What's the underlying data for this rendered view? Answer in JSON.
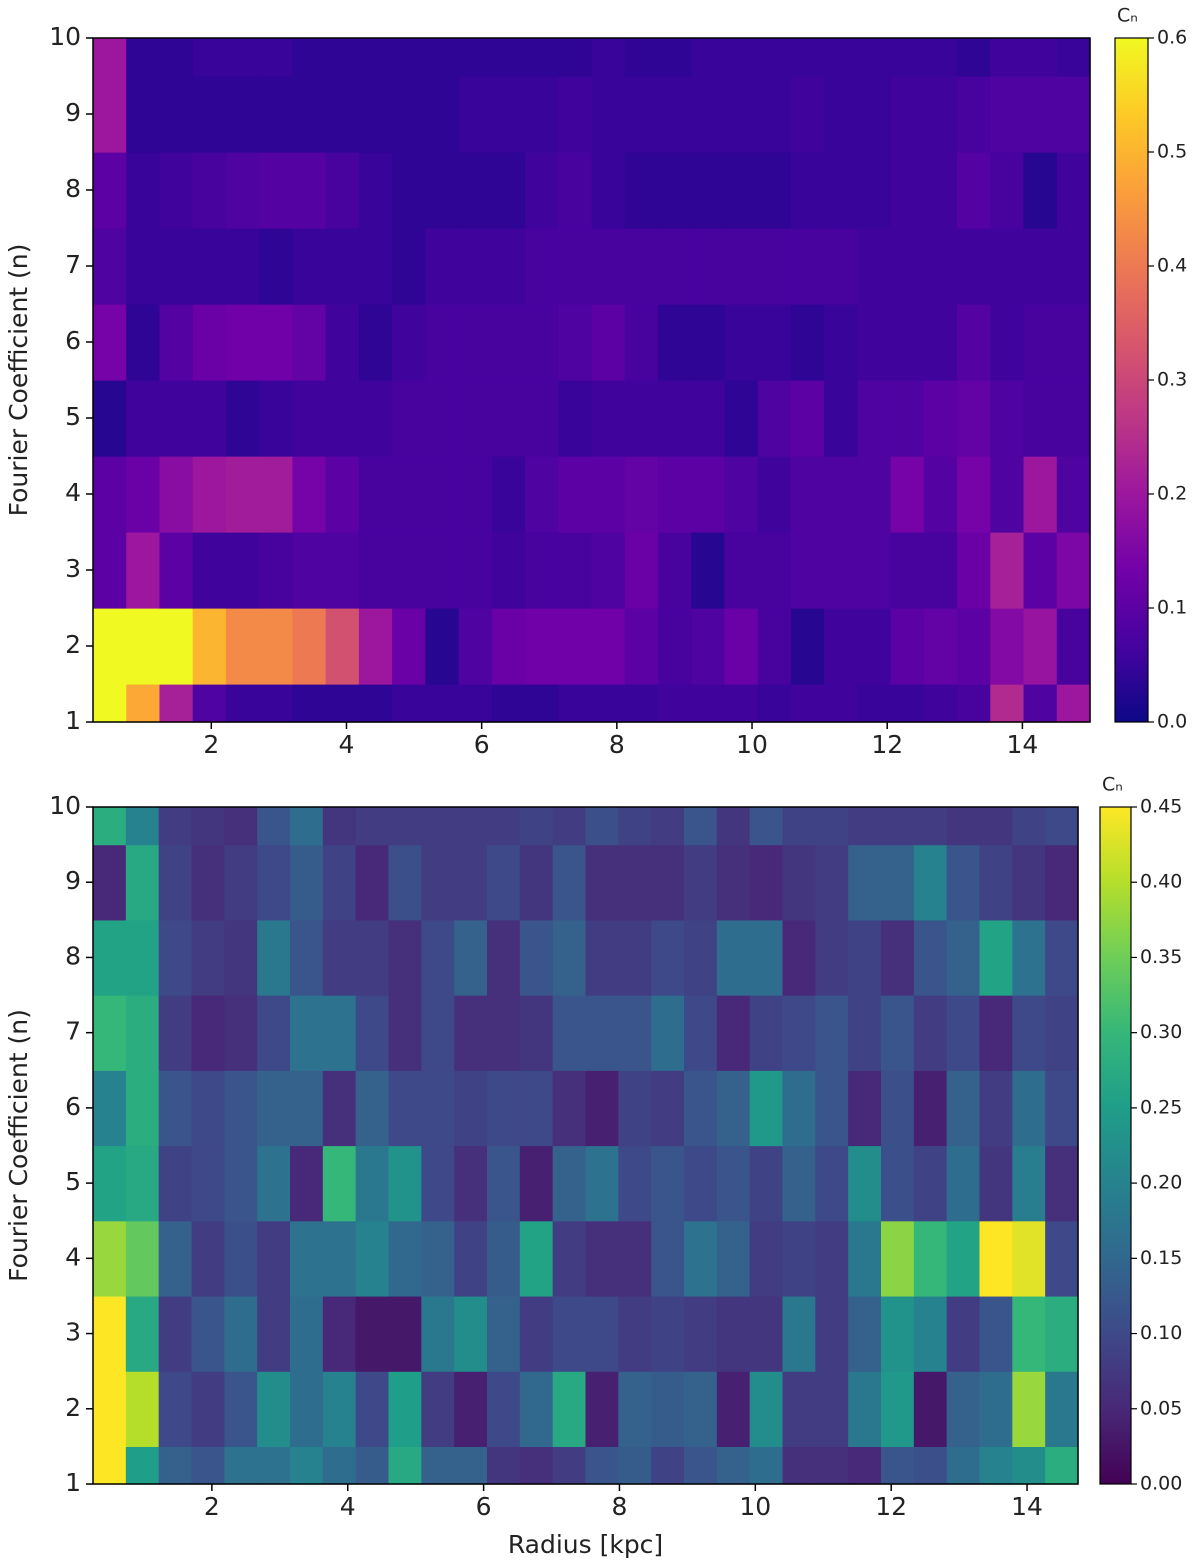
{
  "chart_data": [
    {
      "type": "heatmap",
      "y_label": "Fourier Coefficient (n)",
      "xlim": [
        0.25,
        15
      ],
      "ylim": [
        1,
        10
      ],
      "xticks": [
        2,
        4,
        6,
        8,
        10,
        12,
        14
      ],
      "yticks": [
        1,
        2,
        3,
        4,
        5,
        6,
        7,
        8,
        9,
        10
      ],
      "y": [
        1,
        2,
        3,
        4,
        5,
        6,
        7,
        8,
        9,
        10
      ],
      "values": [
        [
          0.6,
          0.48,
          0.22,
          0.08,
          0.05,
          0.05,
          0.04,
          0.04,
          0.04,
          0.05,
          0.05,
          0.05,
          0.04,
          0.04,
          0.05,
          0.05,
          0.05,
          0.06,
          0.06,
          0.06,
          0.05,
          0.06,
          0.06,
          0.05,
          0.05,
          0.06,
          0.07,
          0.24,
          0.08,
          0.2
        ],
        [
          0.6,
          0.6,
          0.6,
          0.5,
          0.43,
          0.43,
          0.4,
          0.32,
          0.2,
          0.12,
          0.03,
          0.08,
          0.12,
          0.13,
          0.13,
          0.13,
          0.1,
          0.07,
          0.08,
          0.12,
          0.07,
          0.03,
          0.06,
          0.06,
          0.1,
          0.11,
          0.1,
          0.16,
          0.19,
          0.07
        ],
        [
          0.1,
          0.2,
          0.1,
          0.06,
          0.06,
          0.07,
          0.08,
          0.08,
          0.07,
          0.07,
          0.07,
          0.07,
          0.06,
          0.07,
          0.07,
          0.08,
          0.12,
          0.07,
          0.03,
          0.07,
          0.07,
          0.08,
          0.08,
          0.08,
          0.07,
          0.07,
          0.12,
          0.22,
          0.1,
          0.15
        ],
        [
          0.1,
          0.12,
          0.17,
          0.2,
          0.21,
          0.21,
          0.14,
          0.1,
          0.07,
          0.07,
          0.07,
          0.07,
          0.05,
          0.08,
          0.1,
          0.1,
          0.11,
          0.1,
          0.1,
          0.08,
          0.06,
          0.08,
          0.08,
          0.08,
          0.14,
          0.09,
          0.14,
          0.08,
          0.2,
          0.08
        ],
        [
          0.03,
          0.06,
          0.06,
          0.06,
          0.04,
          0.05,
          0.06,
          0.06,
          0.06,
          0.07,
          0.07,
          0.07,
          0.07,
          0.07,
          0.05,
          0.06,
          0.06,
          0.06,
          0.06,
          0.04,
          0.08,
          0.1,
          0.05,
          0.08,
          0.08,
          0.1,
          0.11,
          0.08,
          0.07,
          0.07
        ],
        [
          0.14,
          0.04,
          0.09,
          0.12,
          0.13,
          0.13,
          0.11,
          0.06,
          0.04,
          0.06,
          0.07,
          0.07,
          0.07,
          0.07,
          0.08,
          0.1,
          0.07,
          0.04,
          0.04,
          0.05,
          0.05,
          0.04,
          0.05,
          0.06,
          0.06,
          0.06,
          0.09,
          0.06,
          0.07,
          0.07
        ],
        [
          0.08,
          0.05,
          0.05,
          0.05,
          0.05,
          0.04,
          0.05,
          0.05,
          0.05,
          0.04,
          0.06,
          0.06,
          0.06,
          0.07,
          0.07,
          0.07,
          0.07,
          0.07,
          0.07,
          0.07,
          0.07,
          0.07,
          0.07,
          0.06,
          0.06,
          0.06,
          0.06,
          0.06,
          0.06,
          0.06
        ],
        [
          0.1,
          0.05,
          0.06,
          0.07,
          0.08,
          0.09,
          0.09,
          0.07,
          0.05,
          0.04,
          0.04,
          0.04,
          0.04,
          0.06,
          0.07,
          0.05,
          0.04,
          0.04,
          0.04,
          0.04,
          0.04,
          0.05,
          0.05,
          0.05,
          0.06,
          0.06,
          0.09,
          0.07,
          0.03,
          0.06
        ],
        [
          0.2,
          0.04,
          0.04,
          0.04,
          0.04,
          0.04,
          0.04,
          0.04,
          0.04,
          0.04,
          0.04,
          0.05,
          0.05,
          0.05,
          0.06,
          0.05,
          0.05,
          0.05,
          0.05,
          0.05,
          0.05,
          0.06,
          0.05,
          0.05,
          0.06,
          0.06,
          0.07,
          0.08,
          0.08,
          0.08
        ],
        [
          0.2,
          0.04,
          0.04,
          0.05,
          0.05,
          0.05,
          0.04,
          0.04,
          0.04,
          0.04,
          0.04,
          0.04,
          0.04,
          0.04,
          0.04,
          0.05,
          0.04,
          0.04,
          0.05,
          0.05,
          0.05,
          0.05,
          0.05,
          0.05,
          0.05,
          0.05,
          0.04,
          0.06,
          0.06,
          0.05
        ]
      ],
      "colorbar": {
        "title": "Cₙ",
        "lim": [
          0,
          0.6
        ],
        "ticks": [
          {
            "value": 0,
            "label": "0.0"
          },
          0.1,
          0.2,
          0.3,
          0.4,
          0.5,
          0.6
        ],
        "colormap": [
          "#0d0887",
          "#46039f",
          "#7201a8",
          "#9c179e",
          "#bd3786",
          "#d8576b",
          "#ed7953",
          "#fb9f3a",
          "#fdca26",
          "#f0f921"
        ]
      }
    },
    {
      "type": "heatmap",
      "y_label": "Fourier Coefficient (n)",
      "x_label": "Radius [kpc]",
      "xlim": [
        0.25,
        14.75
      ],
      "ylim": [
        1,
        10
      ],
      "xticks": [
        2,
        4,
        6,
        8,
        10,
        12,
        14
      ],
      "yticks": [
        1,
        2,
        3,
        4,
        5,
        6,
        7,
        8,
        9,
        10
      ],
      "y": [
        1,
        2,
        3,
        4,
        5,
        6,
        7,
        8,
        9,
        10
      ],
      "values": [
        [
          0.45,
          0.25,
          0.14,
          0.12,
          0.17,
          0.17,
          0.2,
          0.16,
          0.13,
          0.27,
          0.14,
          0.14,
          0.07,
          0.06,
          0.08,
          0.12,
          0.13,
          0.09,
          0.12,
          0.14,
          0.16,
          0.06,
          0.06,
          0.05,
          0.12,
          0.11,
          0.16,
          0.2,
          0.22,
          0.28
        ],
        [
          0.45,
          0.4,
          0.1,
          0.08,
          0.12,
          0.22,
          0.16,
          0.2,
          0.1,
          0.25,
          0.08,
          0.04,
          0.1,
          0.15,
          0.27,
          0.04,
          0.14,
          0.13,
          0.14,
          0.04,
          0.22,
          0.08,
          0.08,
          0.18,
          0.24,
          0.03,
          0.14,
          0.16,
          0.38,
          0.18
        ],
        [
          0.45,
          0.27,
          0.08,
          0.12,
          0.16,
          0.08,
          0.16,
          0.05,
          0.03,
          0.03,
          0.18,
          0.22,
          0.14,
          0.08,
          0.1,
          0.1,
          0.08,
          0.09,
          0.08,
          0.07,
          0.07,
          0.18,
          0.08,
          0.14,
          0.23,
          0.2,
          0.08,
          0.12,
          0.3,
          0.28
        ],
        [
          0.38,
          0.34,
          0.14,
          0.08,
          0.11,
          0.08,
          0.17,
          0.17,
          0.2,
          0.15,
          0.14,
          0.09,
          0.13,
          0.26,
          0.08,
          0.06,
          0.06,
          0.12,
          0.17,
          0.14,
          0.08,
          0.09,
          0.08,
          0.18,
          0.37,
          0.3,
          0.26,
          0.45,
          0.43,
          0.1
        ],
        [
          0.26,
          0.27,
          0.09,
          0.1,
          0.12,
          0.17,
          0.05,
          0.3,
          0.18,
          0.23,
          0.1,
          0.06,
          0.12,
          0.04,
          0.14,
          0.17,
          0.1,
          0.12,
          0.1,
          0.12,
          0.09,
          0.14,
          0.1,
          0.22,
          0.11,
          0.09,
          0.16,
          0.07,
          0.19,
          0.06
        ],
        [
          0.2,
          0.28,
          0.12,
          0.1,
          0.12,
          0.14,
          0.14,
          0.06,
          0.14,
          0.1,
          0.1,
          0.09,
          0.1,
          0.1,
          0.06,
          0.04,
          0.09,
          0.08,
          0.12,
          0.14,
          0.24,
          0.16,
          0.12,
          0.05,
          0.11,
          0.04,
          0.14,
          0.08,
          0.16,
          0.1
        ],
        [
          0.3,
          0.28,
          0.08,
          0.05,
          0.06,
          0.1,
          0.17,
          0.17,
          0.1,
          0.06,
          0.1,
          0.06,
          0.06,
          0.07,
          0.12,
          0.12,
          0.12,
          0.16,
          0.1,
          0.05,
          0.09,
          0.1,
          0.12,
          0.09,
          0.12,
          0.08,
          0.1,
          0.05,
          0.1,
          0.09
        ],
        [
          0.26,
          0.26,
          0.1,
          0.08,
          0.07,
          0.18,
          0.12,
          0.08,
          0.08,
          0.06,
          0.1,
          0.14,
          0.06,
          0.12,
          0.14,
          0.08,
          0.08,
          0.1,
          0.09,
          0.16,
          0.16,
          0.05,
          0.08,
          0.09,
          0.06,
          0.12,
          0.14,
          0.26,
          0.17,
          0.1
        ],
        [
          0.05,
          0.27,
          0.09,
          0.06,
          0.08,
          0.1,
          0.13,
          0.09,
          0.05,
          0.11,
          0.08,
          0.08,
          0.1,
          0.07,
          0.12,
          0.06,
          0.06,
          0.06,
          0.08,
          0.06,
          0.05,
          0.07,
          0.08,
          0.14,
          0.14,
          0.2,
          0.12,
          0.09,
          0.07,
          0.05
        ],
        [
          0.28,
          0.2,
          0.08,
          0.07,
          0.06,
          0.12,
          0.16,
          0.07,
          0.08,
          0.08,
          0.08,
          0.08,
          0.08,
          0.09,
          0.08,
          0.11,
          0.09,
          0.08,
          0.12,
          0.07,
          0.12,
          0.09,
          0.09,
          0.08,
          0.08,
          0.08,
          0.07,
          0.07,
          0.09,
          0.1
        ]
      ],
      "colorbar": {
        "title": "Cₙ",
        "lim": [
          0,
          0.45
        ],
        "ticks": [
          {
            "value": 0,
            "label": "0.00"
          },
          0.05,
          {
            "value": 0.1,
            "label": "0.10"
          },
          0.15,
          {
            "value": 0.2,
            "label": "0.20"
          },
          0.25,
          {
            "value": 0.3,
            "label": "0.30"
          },
          0.35,
          {
            "value": 0.4,
            "label": "0.40"
          },
          0.45
        ],
        "colormap": [
          "#440154",
          "#482878",
          "#3e4989",
          "#31688e",
          "#26828e",
          "#1f9e89",
          "#35b779",
          "#6ece58",
          "#b5de2b",
          "#fde725"
        ]
      }
    }
  ]
}
